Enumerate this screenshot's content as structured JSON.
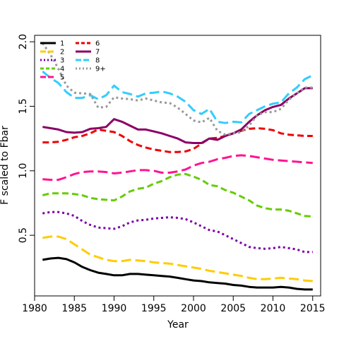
{
  "chart_data": {
    "type": "line",
    "title": "",
    "xlabel": "Year",
    "ylabel": "F scaled to Fbar",
    "xlim": [
      1980,
      2016
    ],
    "ylim": [
      0.03,
      2.05
    ],
    "xticks": [
      1980,
      1985,
      1990,
      1995,
      2000,
      2005,
      2010,
      2015
    ],
    "yticks": [
      0.5,
      1.0,
      1.5,
      2.0
    ],
    "ytick_labels": [
      "0.5",
      "1.0",
      "1.5",
      "2.0"
    ],
    "grid": false,
    "legend_position": "top-left",
    "x": [
      1981,
      1982,
      1983,
      1984,
      1985,
      1986,
      1987,
      1988,
      1989,
      1990,
      1991,
      1992,
      1993,
      1994,
      1995,
      1996,
      1997,
      1998,
      1999,
      2000,
      2001,
      2002,
      2003,
      2004,
      2005,
      2006,
      2007,
      2008,
      2009,
      2010,
      2011,
      2012,
      2013,
      2014,
      2015
    ],
    "series": [
      {
        "name": "1",
        "color": "#000000",
        "dash": "solid",
        "values": [
          0.31,
          0.32,
          0.325,
          0.315,
          0.29,
          0.255,
          0.23,
          0.21,
          0.2,
          0.19,
          0.19,
          0.2,
          0.2,
          0.195,
          0.19,
          0.185,
          0.18,
          0.17,
          0.16,
          0.15,
          0.145,
          0.135,
          0.13,
          0.125,
          0.115,
          0.11,
          0.1,
          0.095,
          0.095,
          0.095,
          0.1,
          0.095,
          0.085,
          0.08,
          0.08
        ]
      },
      {
        "name": "2",
        "color": "#ffcc00",
        "dash": "longdash",
        "values": [
          0.48,
          0.49,
          0.49,
          0.47,
          0.43,
          0.39,
          0.35,
          0.33,
          0.31,
          0.3,
          0.3,
          0.31,
          0.305,
          0.3,
          0.29,
          0.285,
          0.28,
          0.27,
          0.26,
          0.25,
          0.24,
          0.225,
          0.215,
          0.205,
          0.195,
          0.185,
          0.17,
          0.16,
          0.16,
          0.165,
          0.17,
          0.165,
          0.16,
          0.15,
          0.145
        ]
      },
      {
        "name": "3",
        "color": "#7b00a8",
        "dash": "dotted",
        "values": [
          0.67,
          0.68,
          0.68,
          0.67,
          0.65,
          0.61,
          0.58,
          0.56,
          0.555,
          0.55,
          0.57,
          0.6,
          0.615,
          0.62,
          0.63,
          0.635,
          0.64,
          0.635,
          0.625,
          0.6,
          0.57,
          0.54,
          0.53,
          0.5,
          0.47,
          0.44,
          0.41,
          0.4,
          0.395,
          0.4,
          0.41,
          0.4,
          0.39,
          0.37,
          0.37
        ]
      },
      {
        "name": "4",
        "color": "#66cc00",
        "dash": "dashed",
        "values": [
          0.81,
          0.825,
          0.825,
          0.825,
          0.82,
          0.81,
          0.79,
          0.78,
          0.775,
          0.77,
          0.8,
          0.84,
          0.86,
          0.87,
          0.9,
          0.92,
          0.95,
          0.97,
          0.975,
          0.955,
          0.93,
          0.89,
          0.88,
          0.85,
          0.83,
          0.8,
          0.77,
          0.73,
          0.71,
          0.7,
          0.7,
          0.69,
          0.67,
          0.65,
          0.645
        ]
      },
      {
        "name": "5",
        "color": "#ff1493",
        "dash": "longdash",
        "values": [
          0.935,
          0.93,
          0.93,
          0.95,
          0.975,
          0.99,
          0.995,
          0.995,
          0.99,
          0.98,
          0.985,
          0.995,
          1.005,
          1.005,
          1.0,
          0.985,
          0.985,
          0.995,
          1.01,
          1.04,
          1.06,
          1.07,
          1.09,
          1.1,
          1.115,
          1.12,
          1.115,
          1.105,
          1.095,
          1.085,
          1.08,
          1.075,
          1.07,
          1.065,
          1.06
        ]
      },
      {
        "name": "6",
        "color": "#ee0000",
        "dash": "dashed",
        "values": [
          1.22,
          1.22,
          1.225,
          1.24,
          1.26,
          1.27,
          1.29,
          1.32,
          1.31,
          1.3,
          1.27,
          1.23,
          1.2,
          1.18,
          1.165,
          1.155,
          1.145,
          1.145,
          1.15,
          1.17,
          1.21,
          1.25,
          1.255,
          1.27,
          1.29,
          1.31,
          1.325,
          1.33,
          1.325,
          1.315,
          1.29,
          1.28,
          1.275,
          1.27,
          1.27
        ]
      },
      {
        "name": "7",
        "color": "#8b0066",
        "dash": "solid",
        "values": [
          1.34,
          1.33,
          1.32,
          1.3,
          1.295,
          1.3,
          1.325,
          1.33,
          1.34,
          1.4,
          1.38,
          1.35,
          1.32,
          1.32,
          1.305,
          1.29,
          1.27,
          1.25,
          1.22,
          1.215,
          1.215,
          1.25,
          1.24,
          1.27,
          1.29,
          1.32,
          1.38,
          1.43,
          1.47,
          1.495,
          1.51,
          1.56,
          1.6,
          1.64,
          1.64
        ]
      },
      {
        "name": "8",
        "color": "#33ccff",
        "dash": "longdash",
        "values": [
          1.77,
          1.72,
          1.68,
          1.61,
          1.565,
          1.565,
          1.585,
          1.555,
          1.585,
          1.66,
          1.61,
          1.595,
          1.575,
          1.6,
          1.605,
          1.615,
          1.6,
          1.575,
          1.535,
          1.47,
          1.44,
          1.48,
          1.38,
          1.37,
          1.38,
          1.375,
          1.44,
          1.47,
          1.5,
          1.52,
          1.53,
          1.6,
          1.645,
          1.71,
          1.74
        ]
      },
      {
        "name": "9+",
        "color": "#999999",
        "dash": "dotted",
        "values": [
          1.99,
          1.9,
          1.79,
          1.66,
          1.605,
          1.6,
          1.595,
          1.49,
          1.495,
          1.57,
          1.56,
          1.555,
          1.545,
          1.56,
          1.545,
          1.53,
          1.525,
          1.49,
          1.44,
          1.39,
          1.375,
          1.41,
          1.31,
          1.28,
          1.29,
          1.3,
          1.35,
          1.43,
          1.455,
          1.455,
          1.48,
          1.55,
          1.6,
          1.645,
          1.645
        ]
      }
    ]
  }
}
